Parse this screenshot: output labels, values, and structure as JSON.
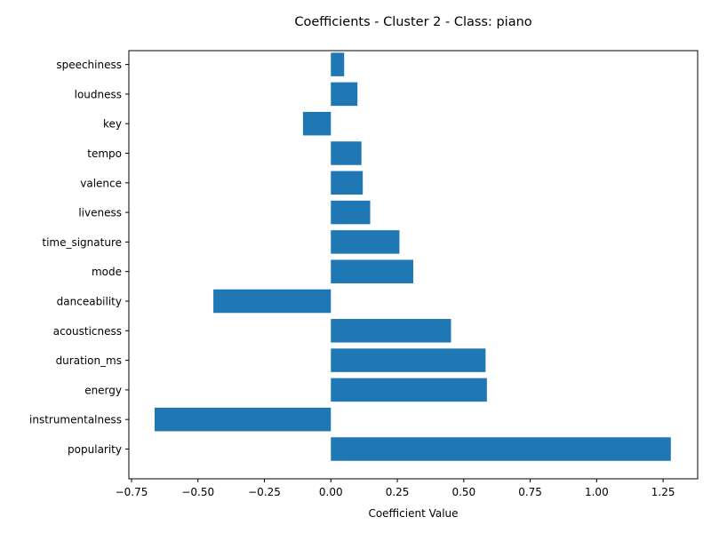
{
  "chart_data": {
    "type": "bar",
    "orientation": "horizontal",
    "title": "Coefficients - Cluster 2 - Class: piano",
    "xlabel": "Coefficient Value",
    "ylabel": "",
    "bar_color": "#1f77b4",
    "xlim": [
      -0.76,
      1.38
    ],
    "x_ticks": [
      -0.75,
      -0.5,
      -0.25,
      0.0,
      0.25,
      0.5,
      0.75,
      1.0,
      1.25
    ],
    "x_tick_labels": [
      "−0.75",
      "−0.50",
      "−0.25",
      "0.00",
      "0.25",
      "0.50",
      "0.75",
      "1.00",
      "1.25"
    ],
    "grid": false,
    "categories": [
      "speechiness",
      "loudness",
      "key",
      "tempo",
      "valence",
      "liveness",
      "time_signature",
      "mode",
      "danceability",
      "acousticness",
      "duration_ms",
      "energy",
      "instrumentalness",
      "popularity"
    ],
    "values": [
      0.05,
      0.1,
      -0.105,
      0.115,
      0.12,
      0.148,
      0.258,
      0.31,
      -0.442,
      0.452,
      0.582,
      0.587,
      -0.663,
      1.279
    ]
  }
}
